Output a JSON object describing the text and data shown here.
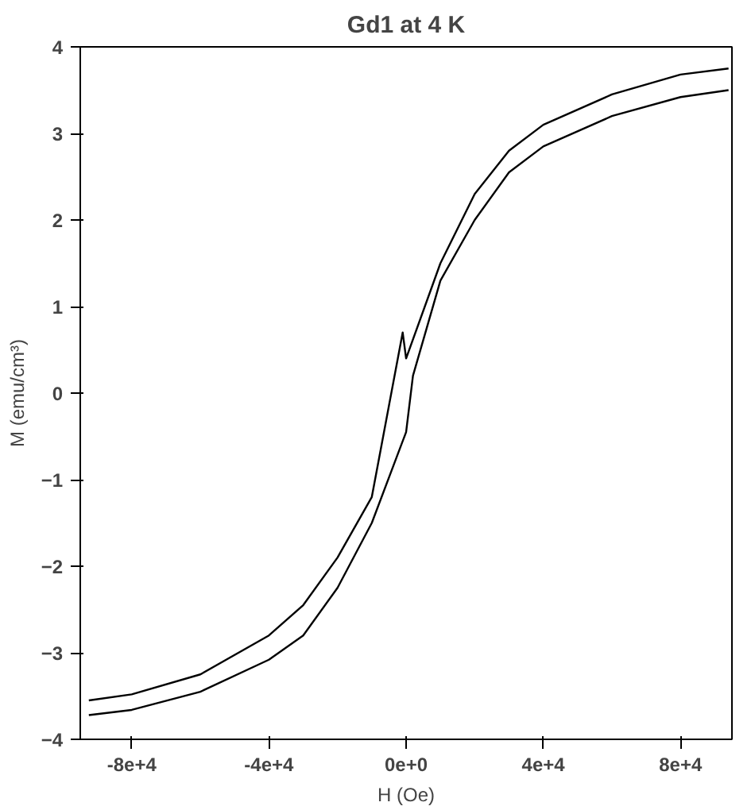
{
  "chart_data": {
    "type": "line",
    "title": "Gd1 at 4 K",
    "xlabel": "H (Oe)",
    "ylabel": "M (emu/cm³)",
    "xlim": [
      -95000,
      95000
    ],
    "ylim": [
      -4,
      4
    ],
    "xticks": [
      {
        "value": -80000,
        "label": "-8e+4"
      },
      {
        "value": -40000,
        "label": "-4e+4"
      },
      {
        "value": 0,
        "label": "0e+0"
      },
      {
        "value": 40000,
        "label": "4e+4"
      },
      {
        "value": 80000,
        "label": "8e+4"
      }
    ],
    "yticks": [
      -4,
      -3,
      -2,
      -1,
      0,
      1,
      2,
      3,
      4
    ],
    "grid": false,
    "marker": "none",
    "line_style": "solid",
    "series": [
      {
        "color": "#000000",
        "x": [
          -92500,
          -80000,
          -60000,
          -40000,
          -30000,
          -20000,
          -10000,
          0,
          2000,
          10000,
          20000,
          30000,
          40000,
          60000,
          80000,
          94000
        ],
        "values": [
          -3.72,
          -3.66,
          -3.45,
          -3.08,
          -2.8,
          -2.25,
          -1.5,
          -0.45,
          0.2,
          1.3,
          2.0,
          2.55,
          2.85,
          3.2,
          3.42,
          3.5
        ]
      },
      {
        "color": "#000000",
        "x": [
          -92500,
          -80000,
          -60000,
          -40000,
          -30000,
          -20000,
          -10000,
          -1000,
          0,
          10000,
          20000,
          30000,
          40000,
          60000,
          80000,
          94000
        ],
        "values": [
          -3.55,
          -3.48,
          -3.25,
          -2.8,
          -2.45,
          -1.9,
          -1.2,
          0.7,
          0.4,
          1.5,
          2.3,
          2.8,
          3.1,
          3.45,
          3.68,
          3.75
        ]
      }
    ]
  }
}
